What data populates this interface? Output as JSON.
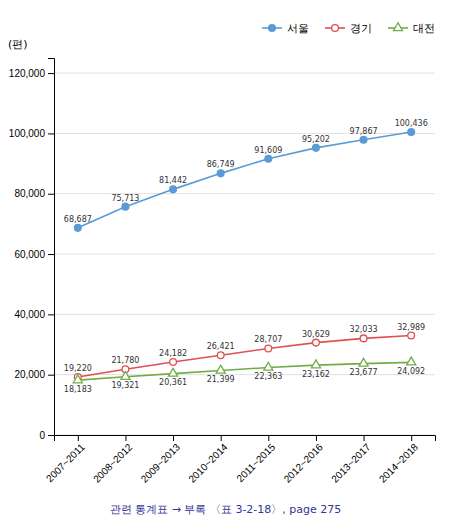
{
  "chart_data": {
    "type": "line",
    "categories": [
      "2007~2011",
      "2008~2012",
      "2009~2013",
      "2010~2014",
      "2011~2015",
      "2012~2016",
      "2013~2017",
      "2014~2018"
    ],
    "series": [
      {
        "name": "서울",
        "color": "#5B9BD5",
        "marker": "circle",
        "values": [
          68687,
          75713,
          81442,
          86749,
          91609,
          95202,
          97867,
          100436
        ],
        "value_labels": [
          "68,687",
          "75,713",
          "81,442",
          "86,749",
          "91,609",
          "95,202",
          "97,867",
          "100,436"
        ]
      },
      {
        "name": "경기",
        "color": "#E05050",
        "marker": "open-circle",
        "values": [
          19220,
          21780,
          24182,
          26421,
          28707,
          30629,
          32033,
          32989
        ],
        "value_labels": [
          "19,220",
          "21,780",
          "24,182",
          "26,421",
          "28,707",
          "30,629",
          "32,033",
          "32,989"
        ]
      },
      {
        "name": "대전",
        "color": "#70AD47",
        "marker": "open-triangle",
        "values": [
          18183,
          19321,
          20361,
          21399,
          22363,
          23162,
          23677,
          24092
        ],
        "value_labels": [
          "18,183",
          "19,321",
          "20,361",
          "21,399",
          "22,363",
          "23,162",
          "23,677",
          "24,092"
        ]
      }
    ],
    "y_label": "(편)",
    "footer": "관련 통계표 → 부록 〈표 3-2-18〉, page 275",
    "ylim": [
      0,
      125000
    ],
    "yticks": [
      0,
      {
        "value": 20000,
        "label": "20,000"
      },
      {
        "value": 40000,
        "label": "40,000"
      },
      {
        "value": 60000,
        "label": "60,000"
      },
      {
        "value": 80000,
        "label": "80,000"
      },
      {
        "value": 100000,
        "label": "100,000"
      },
      {
        "value": 120000,
        "label": "120,000"
      }
    ],
    "grid": true,
    "legend": "top",
    "data_labels": true
  }
}
